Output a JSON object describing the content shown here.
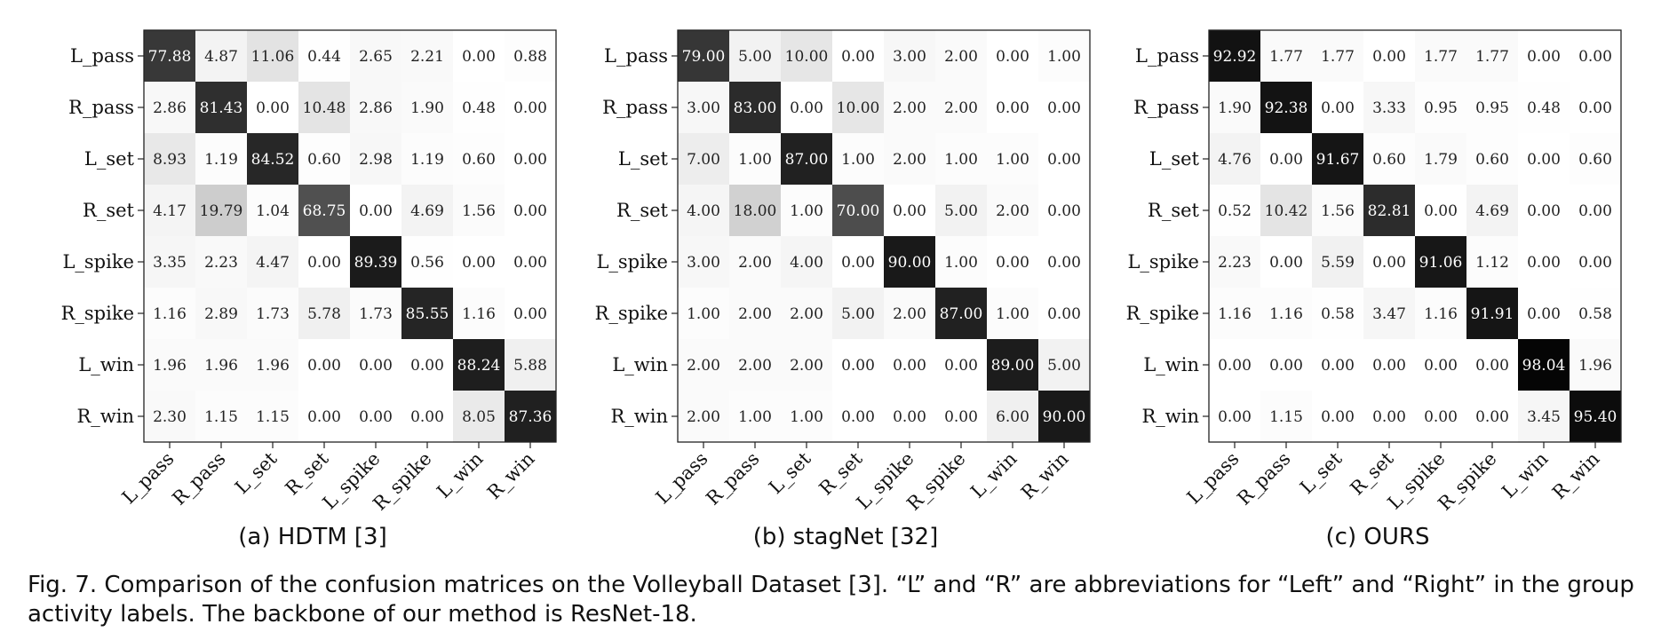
{
  "caption": "Fig. 7. Comparison of the confusion matrices on the Volleyball Dataset [3]. “L” and “R” are abbreviations for “Left” and “Right” in the group activity labels. The backbone of our method is ResNet-18.",
  "chart_data": [
    {
      "type": "heatmap",
      "title": "(a) HDTM [3]",
      "labels": [
        "L_pass",
        "R_pass",
        "L_set",
        "R_set",
        "L_spike",
        "R_spike",
        "L_win",
        "R_win"
      ],
      "matrix": [
        [
          77.88,
          4.87,
          11.06,
          0.44,
          2.65,
          2.21,
          0.0,
          0.88
        ],
        [
          2.86,
          81.43,
          0.0,
          10.48,
          2.86,
          1.9,
          0.48,
          0.0
        ],
        [
          8.93,
          1.19,
          84.52,
          0.6,
          2.98,
          1.19,
          0.6,
          0.0
        ],
        [
          4.17,
          19.79,
          1.04,
          68.75,
          0.0,
          4.69,
          1.56,
          0.0
        ],
        [
          3.35,
          2.23,
          4.47,
          0.0,
          89.39,
          0.56,
          0.0,
          0.0
        ],
        [
          1.16,
          2.89,
          1.73,
          5.78,
          1.73,
          85.55,
          1.16,
          0.0
        ],
        [
          1.96,
          1.96,
          1.96,
          0.0,
          0.0,
          0.0,
          88.24,
          5.88
        ],
        [
          2.3,
          1.15,
          1.15,
          0.0,
          0.0,
          0.0,
          8.05,
          87.36
        ]
      ],
      "colormap": "greys",
      "vmin": 0,
      "vmax": 100
    },
    {
      "type": "heatmap",
      "title": "(b) stagNet [32]",
      "labels": [
        "L_pass",
        "R_pass",
        "L_set",
        "R_set",
        "L_spike",
        "R_spike",
        "L_win",
        "R_win"
      ],
      "matrix": [
        [
          79.0,
          5.0,
          10.0,
          0.0,
          3.0,
          2.0,
          0.0,
          1.0
        ],
        [
          3.0,
          83.0,
          0.0,
          10.0,
          2.0,
          2.0,
          0.0,
          0.0
        ],
        [
          7.0,
          1.0,
          87.0,
          1.0,
          2.0,
          1.0,
          1.0,
          0.0
        ],
        [
          4.0,
          18.0,
          1.0,
          70.0,
          0.0,
          5.0,
          2.0,
          0.0
        ],
        [
          3.0,
          2.0,
          4.0,
          0.0,
          90.0,
          1.0,
          0.0,
          0.0
        ],
        [
          1.0,
          2.0,
          2.0,
          5.0,
          2.0,
          87.0,
          1.0,
          0.0
        ],
        [
          2.0,
          2.0,
          2.0,
          0.0,
          0.0,
          0.0,
          89.0,
          5.0
        ],
        [
          2.0,
          1.0,
          1.0,
          0.0,
          0.0,
          0.0,
          6.0,
          90.0
        ]
      ],
      "colormap": "greys",
      "vmin": 0,
      "vmax": 100
    },
    {
      "type": "heatmap",
      "title": "(c) OURS",
      "labels": [
        "L_pass",
        "R_pass",
        "L_set",
        "R_set",
        "L_spike",
        "R_spike",
        "L_win",
        "R_win"
      ],
      "matrix": [
        [
          92.92,
          1.77,
          1.77,
          0.0,
          1.77,
          1.77,
          0.0,
          0.0
        ],
        [
          1.9,
          92.38,
          0.0,
          3.33,
          0.95,
          0.95,
          0.48,
          0.0
        ],
        [
          4.76,
          0.0,
          91.67,
          0.6,
          1.79,
          0.6,
          0.0,
          0.6
        ],
        [
          0.52,
          10.42,
          1.56,
          82.81,
          0.0,
          4.69,
          0.0,
          0.0
        ],
        [
          2.23,
          0.0,
          5.59,
          0.0,
          91.06,
          1.12,
          0.0,
          0.0
        ],
        [
          1.16,
          1.16,
          0.58,
          3.47,
          1.16,
          91.91,
          0.0,
          0.58
        ],
        [
          0.0,
          0.0,
          0.0,
          0.0,
          0.0,
          0.0,
          98.04,
          1.96
        ],
        [
          0.0,
          1.15,
          0.0,
          0.0,
          0.0,
          0.0,
          3.45,
          95.4
        ]
      ],
      "colormap": "greys",
      "vmin": 0,
      "vmax": 100
    }
  ]
}
